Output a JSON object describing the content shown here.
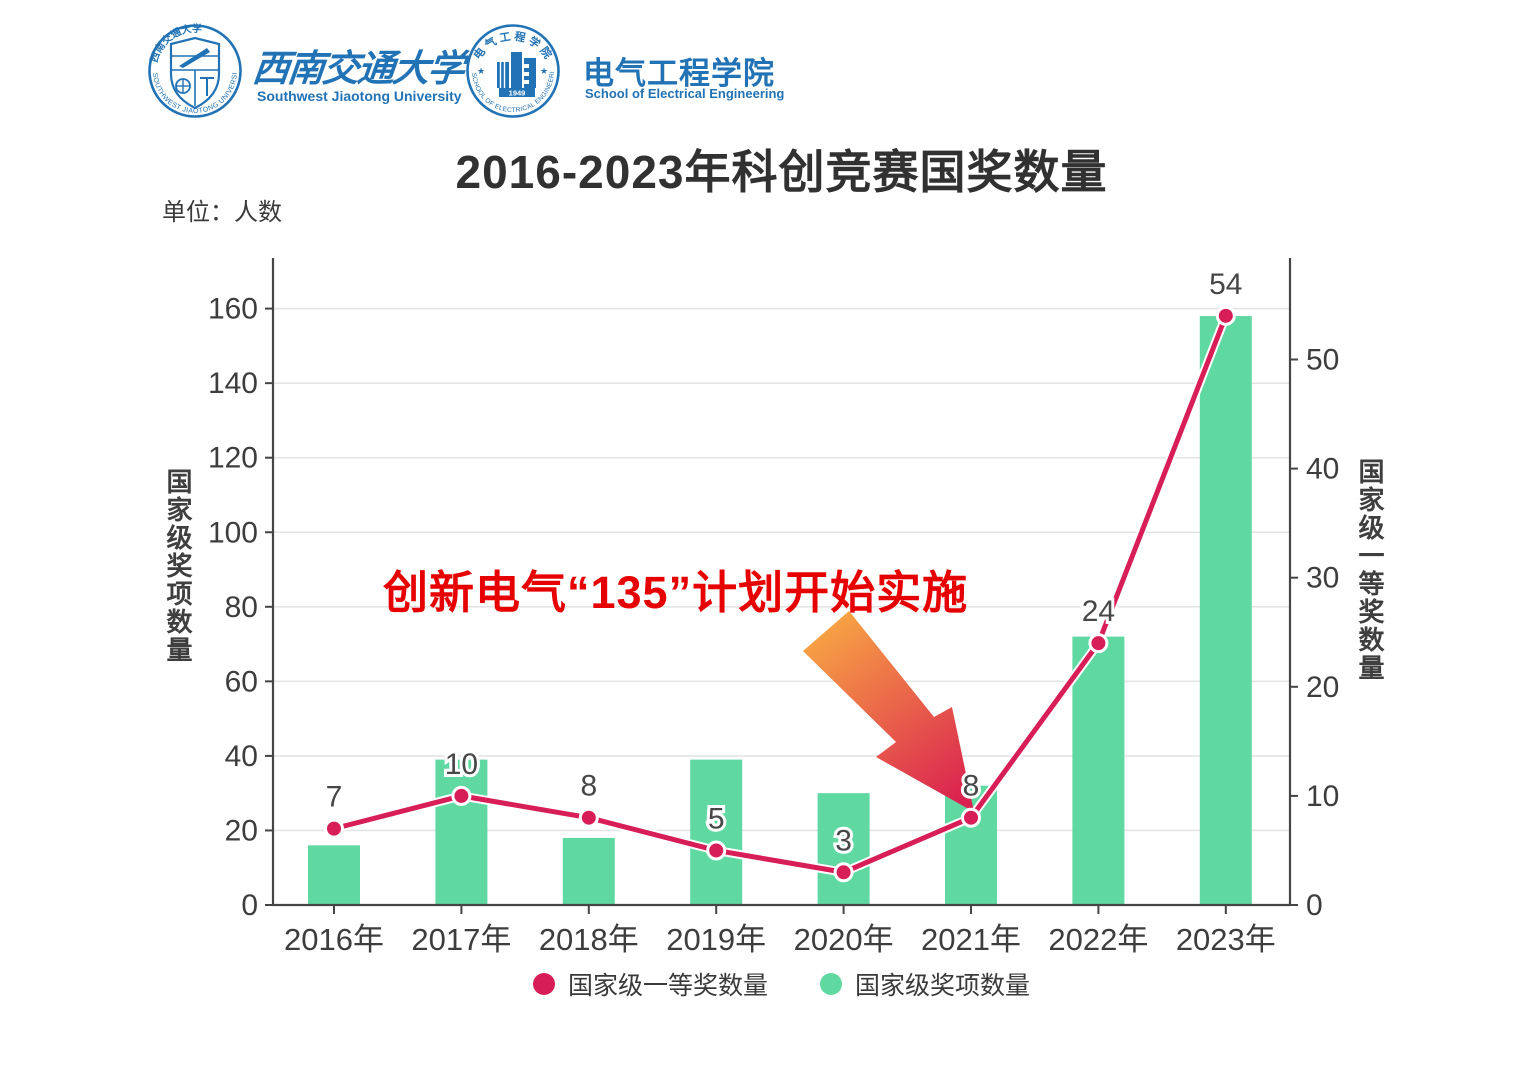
{
  "header": {
    "brand_color": "#2273b5",
    "university": {
      "seal_ring_text": "SOUTHWEST JIAOTONG UNIVERSITY",
      "seal_top_text": "西南交通大学",
      "name_zh": "西南交通大学",
      "name_en": "Southwest Jiaotong University"
    },
    "school": {
      "seal_ring_text": "SCHOOL OF ELECTRICAL ENGINEERING",
      "seal_top_text": "电气工程学院",
      "seal_year": "1949",
      "name_zh": "电气工程学院",
      "name_en": "School of Electrical Engineering"
    }
  },
  "title": "2016-2023年科创竞赛国奖数量",
  "unit_label": "单位：人数",
  "annotation": {
    "text": "创新电气“135”计划开始实施",
    "color": "#e60000",
    "arrow_gradient_top": "#f7a144",
    "arrow_gradient_tip": "#da2150",
    "arrow_points_to": "2021年"
  },
  "legend": {
    "items": [
      {
        "label": "国家级一等奖数量",
        "color": "#d81e56"
      },
      {
        "label": "国家级奖项数量",
        "color": "#5fd8a2"
      }
    ]
  },
  "chart_data": {
    "type": "bar+line",
    "categories": [
      "2016年",
      "2017年",
      "2018年",
      "2019年",
      "2020年",
      "2021年",
      "2022年",
      "2023年"
    ],
    "series": [
      {
        "name": "国家级奖项数量",
        "type": "bar",
        "y_axis": "left",
        "color": "#5fd8a2",
        "values": [
          16,
          39,
          18,
          39,
          30,
          32,
          72,
          158
        ]
      },
      {
        "name": "国家级一等奖数量",
        "type": "line",
        "y_axis": "right",
        "color": "#d81e56",
        "marker": "circle",
        "values": [
          7,
          10,
          8,
          5,
          3,
          8,
          24,
          54
        ],
        "data_labels": [
          "7",
          "10",
          "8",
          "5",
          "3",
          "8",
          "24",
          "54"
        ]
      }
    ],
    "left_axis": {
      "name": "国家级奖项数量",
      "min": 0,
      "max": 160,
      "interval": 20
    },
    "right_axis": {
      "name": "国家级一等奖数量",
      "min": 0,
      "max": 50,
      "interval": 10
    },
    "grid": "horizontal",
    "legend_position": "bottom",
    "axis_color": "#454545",
    "gridline_color": "#e4e4e4",
    "tick_label_color": "#3d3d3d",
    "data_label_color": "#474747"
  }
}
